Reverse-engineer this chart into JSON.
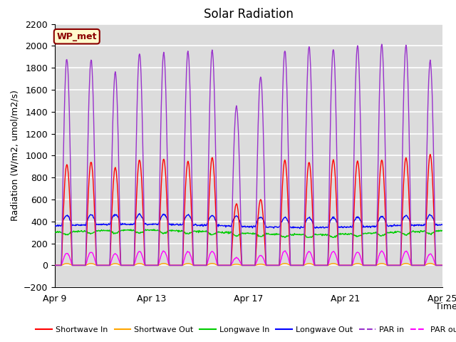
{
  "title": "Solar Radiation",
  "ylabel": "Radiation (W/m2, umol/m2/s)",
  "xlabel": "Time",
  "ylim": [
    -200,
    2200
  ],
  "yticks": [
    -200,
    0,
    200,
    400,
    600,
    800,
    1000,
    1200,
    1400,
    1600,
    1800,
    2000,
    2200
  ],
  "xtick_labels": [
    "Apr 9",
    "Apr 13",
    "Apr 17",
    "Apr 21",
    "Apr 25"
  ],
  "xtick_positions": [
    0,
    4,
    8,
    12,
    16
  ],
  "annotation_text": "WP_met",
  "annotation_bg": "#FFFACD",
  "annotation_border": "#8B0000",
  "legend": [
    {
      "label": "Shortwave In",
      "color": "#FF0000",
      "ls": "-"
    },
    {
      "label": "Shortwave Out",
      "color": "#FFA500",
      "ls": "-"
    },
    {
      "label": "Longwave In",
      "color": "#00CC00",
      "ls": "-"
    },
    {
      "label": "Longwave Out",
      "color": "#0000FF",
      "ls": "-"
    },
    {
      "label": "PAR in",
      "color": "#9932CC",
      "ls": "--"
    },
    {
      "label": "PAR out",
      "color": "#FF00FF",
      "ls": "--"
    }
  ],
  "bg_color": "#DCDCDC",
  "grid_color": "#FFFFFF",
  "title_fontsize": 12
}
